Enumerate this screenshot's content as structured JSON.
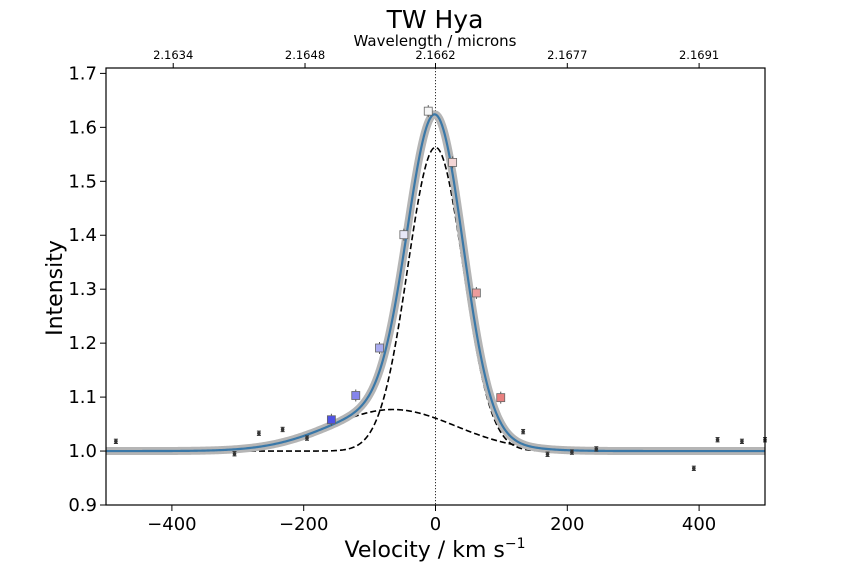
{
  "chart_data": {
    "type": "line",
    "title": "TW Hya",
    "xlabel": "Velocity / km s",
    "xlabel_superscript": "−1",
    "ylabel": "Intensity",
    "top_axis_label": "Wavelength / microns",
    "xlim": [
      -500,
      500
    ],
    "ylim": [
      0.9,
      1.71
    ],
    "x_ticks": [
      -400,
      -200,
      0,
      200,
      400
    ],
    "x_tick_labels": [
      "−400",
      "−200",
      "0",
      "200",
      "400"
    ],
    "y_ticks": [
      0.9,
      1.0,
      1.1,
      1.2,
      1.3,
      1.4,
      1.5,
      1.6,
      1.7
    ],
    "y_tick_labels": [
      "0.9",
      "1.0",
      "1.1",
      "1.2",
      "1.3",
      "1.4",
      "1.5",
      "1.6",
      "1.7"
    ],
    "top_ticks": [
      {
        "velocity": -398,
        "label": "2.1634"
      },
      {
        "velocity": -198,
        "label": "2.1648"
      },
      {
        "velocity": 0,
        "label": "2.1662"
      },
      {
        "velocity": 200,
        "label": "2.1677"
      },
      {
        "velocity": 400,
        "label": "2.1691"
      }
    ],
    "reference_line_x": 0,
    "model": {
      "baseline": 1.0,
      "narrow_component": {
        "amplitude": 0.563,
        "center": 0,
        "sigma": 42
      },
      "broad_component": {
        "amplitude": 0.077,
        "center": -65,
        "sigma": 95
      }
    },
    "series": [
      {
        "style": "errorbar",
        "color": "#333333",
        "x": [
          -485,
          -305,
          -268,
          -232,
          -195,
          133,
          170,
          207,
          244,
          392,
          428,
          465,
          500
        ],
        "y": [
          1.018,
          0.995,
          1.033,
          1.04,
          1.024,
          1.036,
          0.994,
          0.998,
          1.004,
          0.968,
          1.021,
          1.018,
          1.021
        ],
        "yerr": [
          0.004,
          0.004,
          0.004,
          0.004,
          0.004,
          0.004,
          0.004,
          0.004,
          0.004,
          0.004,
          0.004,
          0.004,
          0.004
        ]
      },
      {
        "style": "square-markers",
        "x": [
          -158,
          -121,
          -85,
          -48,
          -11,
          26,
          62,
          99
        ],
        "y": [
          1.058,
          1.103,
          1.191,
          1.401,
          1.63,
          1.535,
          1.293,
          1.099
        ],
        "colors": [
          "#4f52e6",
          "#8585ec",
          "#a9abf0",
          "#e7e8f8",
          "#f6f6f6",
          "#f4d6d6",
          "#ec9c9c",
          "#e8807f"
        ]
      }
    ]
  }
}
